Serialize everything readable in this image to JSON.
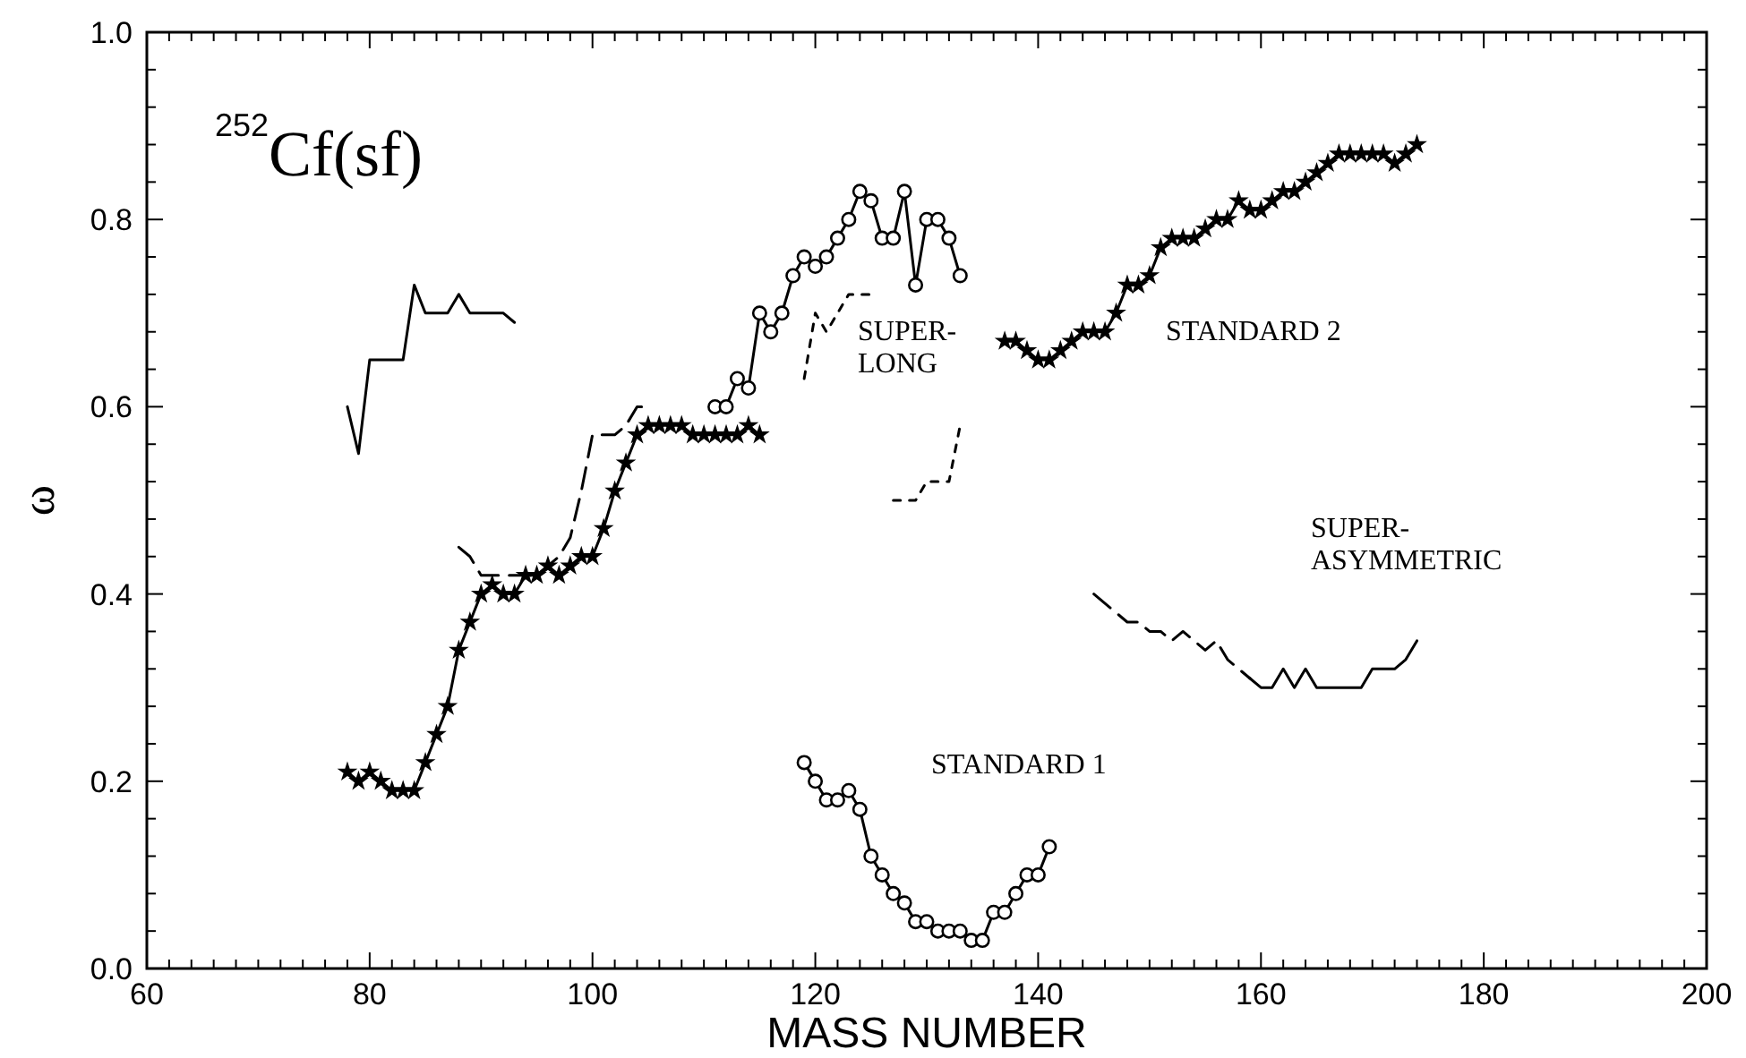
{
  "chart_data": {
    "type": "line",
    "xlabel": "MASS NUMBER",
    "ylabel": "ω",
    "xlim": [
      60,
      200
    ],
    "ylim": [
      0,
      1
    ],
    "xticks": [
      60,
      {
        "value": 62,
        "label": null
      },
      {
        "value": 64,
        "label": null
      },
      {
        "value": 66,
        "label": null
      },
      {
        "value": 68,
        "label": null
      },
      {
        "value": 70,
        "label": null
      },
      {
        "value": 72,
        "label": null
      },
      {
        "value": 74,
        "label": null
      },
      {
        "value": 76,
        "label": null
      },
      {
        "value": 78,
        "label": null
      },
      80,
      {
        "value": 82,
        "label": null
      },
      {
        "value": 84,
        "label": null
      },
      {
        "value": 86,
        "label": null
      },
      {
        "value": 88,
        "label": null
      },
      {
        "value": 90,
        "label": null
      },
      {
        "value": 92,
        "label": null
      },
      {
        "value": 94,
        "label": null
      },
      {
        "value": 96,
        "label": null
      },
      {
        "value": 98,
        "label": null
      },
      100,
      {
        "value": 102,
        "label": null
      },
      {
        "value": 104,
        "label": null
      },
      {
        "value": 106,
        "label": null
      },
      {
        "value": 108,
        "label": null
      },
      {
        "value": 110,
        "label": null
      },
      {
        "value": 112,
        "label": null
      },
      {
        "value": 114,
        "label": null
      },
      {
        "value": 116,
        "label": null
      },
      {
        "value": 118,
        "label": null
      },
      120,
      {
        "value": 122,
        "label": null
      },
      {
        "value": 124,
        "label": null
      },
      {
        "value": 126,
        "label": null
      },
      {
        "value": 128,
        "label": null
      },
      {
        "value": 130,
        "label": null
      },
      {
        "value": 132,
        "label": null
      },
      {
        "value": 134,
        "label": null
      },
      {
        "value": 136,
        "label": null
      },
      {
        "value": 138,
        "label": null
      },
      140,
      {
        "value": 142,
        "label": null
      },
      {
        "value": 144,
        "label": null
      },
      {
        "value": 146,
        "label": null
      },
      {
        "value": 148,
        "label": null
      },
      {
        "value": 150,
        "label": null
      },
      {
        "value": 152,
        "label": null
      },
      {
        "value": 154,
        "label": null
      },
      {
        "value": 156,
        "label": null
      },
      {
        "value": 158,
        "label": null
      },
      160,
      {
        "value": 162,
        "label": null
      },
      {
        "value": 164,
        "label": null
      },
      {
        "value": 166,
        "label": null
      },
      {
        "value": 168,
        "label": null
      },
      {
        "value": 170,
        "label": null
      },
      {
        "value": 172,
        "label": null
      },
      {
        "value": 174,
        "label": null
      },
      {
        "value": 176,
        "label": null
      },
      {
        "value": 178,
        "label": null
      },
      180,
      {
        "value": 182,
        "label": null
      },
      {
        "value": 184,
        "label": null
      },
      {
        "value": 186,
        "label": null
      },
      {
        "value": 188,
        "label": null
      },
      {
        "value": 190,
        "label": null
      },
      {
        "value": 192,
        "label": null
      },
      {
        "value": 194,
        "label": null
      },
      {
        "value": 196,
        "label": null
      },
      {
        "value": 198,
        "label": null
      },
      200
    ],
    "yticks": [
      {
        "value": 0,
        "label": "0.0"
      },
      {
        "value": 0.04,
        "label": null
      },
      {
        "value": 0.08,
        "label": null
      },
      {
        "value": 0.12,
        "label": null
      },
      {
        "value": 0.16,
        "label": null
      },
      {
        "value": 0.2,
        "label": "0.2"
      },
      {
        "value": 0.24,
        "label": null
      },
      {
        "value": 0.28,
        "label": null
      },
      {
        "value": 0.32,
        "label": null
      },
      {
        "value": 0.36,
        "label": null
      },
      {
        "value": 0.4,
        "label": "0.4"
      },
      {
        "value": 0.44,
        "label": null
      },
      {
        "value": 0.48,
        "label": null
      },
      {
        "value": 0.52,
        "label": null
      },
      {
        "value": 0.56,
        "label": null
      },
      {
        "value": 0.6,
        "label": "0.6"
      },
      {
        "value": 0.64,
        "label": null
      },
      {
        "value": 0.68,
        "label": null
      },
      {
        "value": 0.72,
        "label": null
      },
      {
        "value": 0.76,
        "label": null
      },
      {
        "value": 0.8,
        "label": "0.8"
      },
      {
        "value": 0.84,
        "label": null
      },
      {
        "value": 0.88,
        "label": null
      },
      {
        "value": 0.92,
        "label": null
      },
      {
        "value": 0.96,
        "label": null
      },
      {
        "value": 1,
        "label": "1.0"
      }
    ],
    "grid": false,
    "series": [
      {
        "color": "#000000",
        "marker": "star",
        "line_style": "solid",
        "x": [
          78,
          79,
          80,
          81,
          82,
          83,
          84,
          85,
          86,
          87,
          88,
          89,
          90,
          91,
          92,
          93,
          94,
          95,
          96,
          97,
          98,
          99,
          100,
          101,
          102,
          103,
          104,
          105,
          106,
          107,
          108,
          109,
          110,
          111,
          112,
          113,
          114,
          115
        ],
        "values": [
          0.21,
          0.2,
          0.21,
          0.2,
          0.19,
          0.19,
          0.19,
          0.22,
          0.25,
          0.28,
          0.34,
          0.37,
          0.4,
          0.41,
          0.4,
          0.4,
          0.42,
          0.42,
          0.43,
          0.42,
          0.43,
          0.44,
          0.44,
          0.47,
          0.51,
          0.54,
          0.57,
          0.58,
          0.58,
          0.58,
          0.58,
          0.57,
          0.57,
          0.57,
          0.57,
          0.57,
          0.58,
          0.57
        ]
      },
      {
        "color": "#000000",
        "marker": "circle",
        "line_style": "solid",
        "x": [
          111,
          112,
          113,
          114,
          115,
          116,
          117,
          118,
          119,
          120,
          121,
          122,
          123,
          124,
          125,
          126,
          127,
          128,
          129,
          130,
          131,
          132,
          133
        ],
        "values": [
          0.6,
          0.6,
          0.63,
          0.62,
          0.7,
          0.68,
          0.7,
          0.74,
          0.76,
          0.75,
          0.76,
          0.78,
          0.8,
          0.83,
          0.82,
          0.78,
          0.78,
          0.83,
          0.73,
          0.8,
          0.8,
          0.78,
          0.74
        ]
      },
      {
        "color": "#000000",
        "marker": "circle",
        "line_style": "solid",
        "x": [
          119,
          120,
          121,
          122,
          123,
          124,
          125,
          126,
          127,
          128,
          129,
          130,
          131,
          132,
          133,
          134,
          135,
          136,
          137,
          138,
          139,
          140,
          141
        ],
        "values": [
          0.22,
          0.2,
          0.18,
          0.18,
          0.19,
          0.17,
          0.12,
          0.1,
          0.08,
          0.07,
          0.05,
          0.05,
          0.04,
          0.04,
          0.04,
          0.03,
          0.03,
          0.06,
          0.06,
          0.08,
          0.1,
          0.1,
          0.13
        ]
      },
      {
        "color": "#000000",
        "marker": "star",
        "line_style": "solid",
        "x": [
          137,
          138,
          139,
          140,
          141,
          142,
          143,
          144,
          145,
          146,
          147,
          148,
          149,
          150,
          151,
          152,
          153,
          154,
          155,
          156,
          157,
          158,
          159,
          160,
          161,
          162,
          163,
          164,
          165,
          166,
          167,
          168,
          169,
          170,
          171,
          172,
          173,
          174
        ],
        "values": [
          0.67,
          0.67,
          0.66,
          0.65,
          0.65,
          0.66,
          0.67,
          0.68,
          0.68,
          0.68,
          0.7,
          0.73,
          0.73,
          0.74,
          0.77,
          0.78,
          0.78,
          0.78,
          0.79,
          0.8,
          0.8,
          0.82,
          0.81,
          0.81,
          0.82,
          0.83,
          0.83,
          0.84,
          0.85,
          0.86,
          0.87,
          0.87,
          0.87,
          0.87,
          0.87,
          0.86,
          0.87,
          0.88
        ]
      },
      {
        "color": "#000000",
        "marker": "none",
        "line_style": "solid",
        "x": [
          78,
          79,
          80,
          81,
          82,
          83,
          84,
          85,
          86,
          87,
          88,
          89,
          90,
          91,
          92,
          93
        ],
        "values": [
          0.6,
          0.55,
          0.65,
          0.65,
          0.65,
          0.65,
          0.73,
          0.7,
          0.7,
          0.7,
          0.72,
          0.7,
          0.7,
          0.7,
          0.7,
          0.69
        ]
      },
      {
        "color": "#000000",
        "marker": "none",
        "line_style": "solid",
        "x": [
          159,
          160,
          161,
          162,
          163,
          164,
          165,
          166,
          167,
          168,
          169,
          170,
          171,
          172,
          173,
          174
        ],
        "values": [
          0.31,
          0.3,
          0.3,
          0.32,
          0.3,
          0.32,
          0.3,
          0.3,
          0.3,
          0.3,
          0.3,
          0.32,
          0.32,
          0.32,
          0.33,
          0.35
        ]
      },
      {
        "color": "#000000",
        "marker": "none",
        "line_style": "dashed",
        "x": [
          88,
          89,
          90,
          91,
          92,
          93,
          94,
          95,
          96,
          97,
          98,
          99,
          100,
          101,
          102,
          103,
          104,
          105
        ],
        "values": [
          0.45,
          0.44,
          0.42,
          0.42,
          0.42,
          0.42,
          0.42,
          0.42,
          0.43,
          0.44,
          0.46,
          0.51,
          0.57,
          0.57,
          0.57,
          0.58,
          0.6,
          0.6
        ]
      },
      {
        "color": "#000000",
        "marker": "none",
        "line_style": "dashed",
        "x": [
          145,
          146,
          147,
          148,
          149,
          150,
          151,
          152,
          153,
          154,
          155,
          156,
          157,
          158,
          159
        ],
        "values": [
          0.4,
          0.39,
          0.38,
          0.37,
          0.37,
          0.36,
          0.36,
          0.35,
          0.36,
          0.35,
          0.34,
          0.35,
          0.33,
          0.32,
          0.31
        ]
      },
      {
        "color": "#000000",
        "marker": "none",
        "line_style": "dotted",
        "x": [
          119,
          120,
          121,
          122,
          123,
          124,
          125
        ],
        "values": [
          0.63,
          0.7,
          0.68,
          0.7,
          0.72,
          0.72,
          0.72
        ]
      },
      {
        "color": "#000000",
        "marker": "none",
        "line_style": "dotted",
        "x": [
          127,
          128,
          129,
          130,
          131,
          132,
          133
        ],
        "values": [
          0.5,
          0.5,
          0.5,
          0.52,
          0.52,
          0.52,
          0.58
        ]
      }
    ],
    "annotations": [
      "$^{252}$Cf(sf)",
      "SUPER-LONG",
      "STANDARD 2",
      "SUPER-ASYMMETRIC",
      "STANDARD 1"
    ]
  }
}
